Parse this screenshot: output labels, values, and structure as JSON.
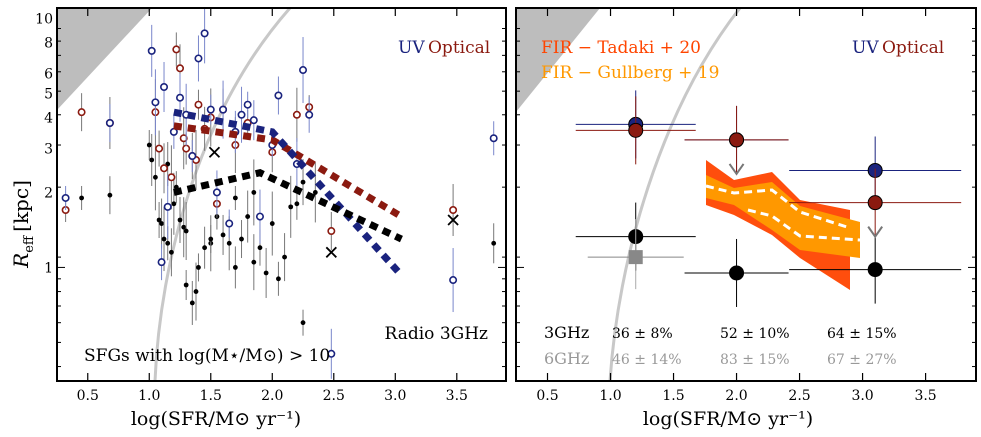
{
  "figure": {
    "ylabel_main": "R",
    "ylabel_sub": "eff",
    "ylabel_unit": "[kpc]"
  },
  "colors": {
    "uv": "#1a237e",
    "optical": "#8b1a10",
    "radio": "#000000",
    "tadaki": "#ff4500",
    "gullberg": "#ff9800",
    "grey": "#888888",
    "shade": "#bdbdbd"
  },
  "chart_data": [
    {
      "type": "scatter",
      "panel": "left",
      "xlabel": "log(SFR/M⊙ yr⁻¹)",
      "ylabel": "R_eff [kpc]",
      "xlim": [
        0.25,
        3.9
      ],
      "ylim": [
        0.35,
        11
      ],
      "yscale": "log",
      "x_ticks": [
        0.5,
        1.0,
        1.5,
        2.0,
        2.5,
        3.0,
        3.5
      ],
      "y_ticks": [
        1,
        2,
        3,
        4,
        5,
        6,
        8,
        10
      ],
      "legend_uv": "UV",
      "legend_optical": "Optical",
      "label_radio": "Radio 3GHz",
      "label_sample": "SFGs with  log(M⋆/M⊙) > 10",
      "series": [
        {
          "name": "Optical trend",
          "x": [
            1.2,
            2.0,
            3.05
          ],
          "y": [
            3.7,
            3.25,
            1.6
          ]
        },
        {
          "name": "UV trend",
          "x": [
            1.2,
            2.0,
            3.05
          ],
          "y": [
            4.2,
            3.5,
            0.93
          ]
        },
        {
          "name": "Radio 3GHz trend",
          "x": [
            1.2,
            1.9,
            3.05
          ],
          "y": [
            2.0,
            2.4,
            1.3
          ]
        },
        {
          "name": "Radio 3GHz galaxies",
          "x": [
            0.45,
            0.68,
            1.02,
            1.05,
            1.08,
            1.1,
            1.12,
            1.15,
            1.18,
            1.2,
            1.22,
            1.25,
            1.28,
            1.3,
            1.35,
            1.38,
            1.4,
            1.45,
            1.5,
            1.55,
            1.6,
            1.65,
            1.7,
            1.75,
            1.8,
            1.85,
            1.9,
            1.95,
            2.0,
            2.05,
            2.1,
            2.15,
            2.2,
            2.25,
            2.35,
            1.0,
            1.15,
            1.3,
            1.5,
            1.7,
            1.85,
            2.25,
            3.8
          ],
          "y": [
            1.9,
            1.95,
            2.7,
            2.3,
            1.55,
            1.5,
            1.3,
            1.25,
            1.15,
            1.8,
            2.1,
            1.55,
            1.45,
            0.85,
            0.72,
            0.8,
            1.0,
            1.2,
            1.25,
            1.6,
            1.35,
            1.25,
            1.9,
            1.3,
            1.6,
            2.0,
            1.2,
            0.95,
            1.5,
            0.9,
            1.1,
            1.75,
            1.8,
            2.2,
            2.0,
            3.1,
            2.6,
            1.4,
            1.3,
            1.0,
            1.05,
            0.6,
            1.25
          ]
        },
        {
          "name": "Optical galaxies",
          "x": [
            0.32,
            0.45,
            0.68,
            1.05,
            1.08,
            1.12,
            1.18,
            1.22,
            1.25,
            1.28,
            1.3,
            1.35,
            1.38,
            1.4,
            1.45,
            1.5,
            1.55,
            1.6,
            1.7,
            1.8,
            2.0,
            2.2,
            2.3,
            2.48,
            3.47
          ],
          "y": [
            1.7,
            4.2,
            3.8,
            4.2,
            3.0,
            2.5,
            2.3,
            7.5,
            6.3,
            3.3,
            3.0,
            2.8,
            2.7,
            4.5,
            3.6,
            4.0,
            1.8,
            4.3,
            3.1,
            3.8,
            2.9,
            4.1,
            4.4,
            1.4,
            1.7
          ]
        },
        {
          "name": "UV galaxies",
          "x": [
            0.32,
            0.68,
            1.02,
            1.05,
            1.1,
            1.12,
            1.15,
            1.2,
            1.25,
            1.3,
            1.35,
            1.4,
            1.45,
            1.5,
            1.55,
            1.6,
            1.65,
            1.7,
            1.75,
            1.8,
            1.85,
            1.9,
            2.0,
            2.05,
            2.2,
            2.25,
            2.3,
            2.48,
            3.47,
            3.8
          ],
          "y": [
            1.9,
            3.8,
            7.4,
            4.6,
            1.05,
            5.3,
            1.75,
            3.5,
            4.8,
            4.1,
            2.8,
            6.9,
            8.7,
            4.3,
            2.0,
            4.3,
            1.5,
            3.5,
            4.1,
            4.5,
            3.9,
            1.6,
            3.1,
            4.9,
            2.6,
            6.2,
            4.1,
            0.45,
            0.89,
            3.3
          ]
        },
        {
          "name": "Upper-limit crosses",
          "x": [
            1.53,
            2.48,
            3.47
          ],
          "y": [
            2.9,
            1.15,
            1.55
          ]
        }
      ]
    },
    {
      "type": "scatter",
      "panel": "right",
      "xlabel": "log(SFR/M⊙ yr⁻¹)",
      "xlim": [
        0.25,
        3.9
      ],
      "ylim": [
        0.35,
        11
      ],
      "yscale": "log",
      "x_ticks": [
        0.5,
        1.0,
        1.5,
        2.0,
        2.5,
        3.0,
        3.5
      ],
      "legend_uv": "UV",
      "legend_optical": "Optical",
      "legend_fir1": "FIR  −  Tadaki + 20",
      "legend_fir2": "FIR  −  Gullberg + 19",
      "series": [
        {
          "name": "UV",
          "x": [
            1.2,
            2.0,
            3.1
          ],
          "y": [
            3.75,
            3.25,
            2.45
          ]
        },
        {
          "name": "Optical",
          "x": [
            1.2,
            2.0,
            3.1
          ],
          "y": [
            3.55,
            3.25,
            1.82
          ]
        },
        {
          "name": "Radio 3GHz",
          "x": [
            1.2,
            2.0,
            3.1
          ],
          "y": [
            1.33,
            0.95,
            0.98
          ]
        },
        {
          "name": "Radio 6GHz",
          "x": [
            1.2
          ],
          "y": [
            1.1
          ]
        }
      ],
      "detection_fractions": {
        "label_3ghz": "3GHz",
        "label_6ghz": "6GHz",
        "ghz3": [
          "36 ± 8%",
          "52 ± 10%",
          "64 ± 15%"
        ],
        "ghz6": [
          "46 ± 14%",
          "83 ± 15%",
          "67 ± 27%"
        ]
      }
    }
  ]
}
